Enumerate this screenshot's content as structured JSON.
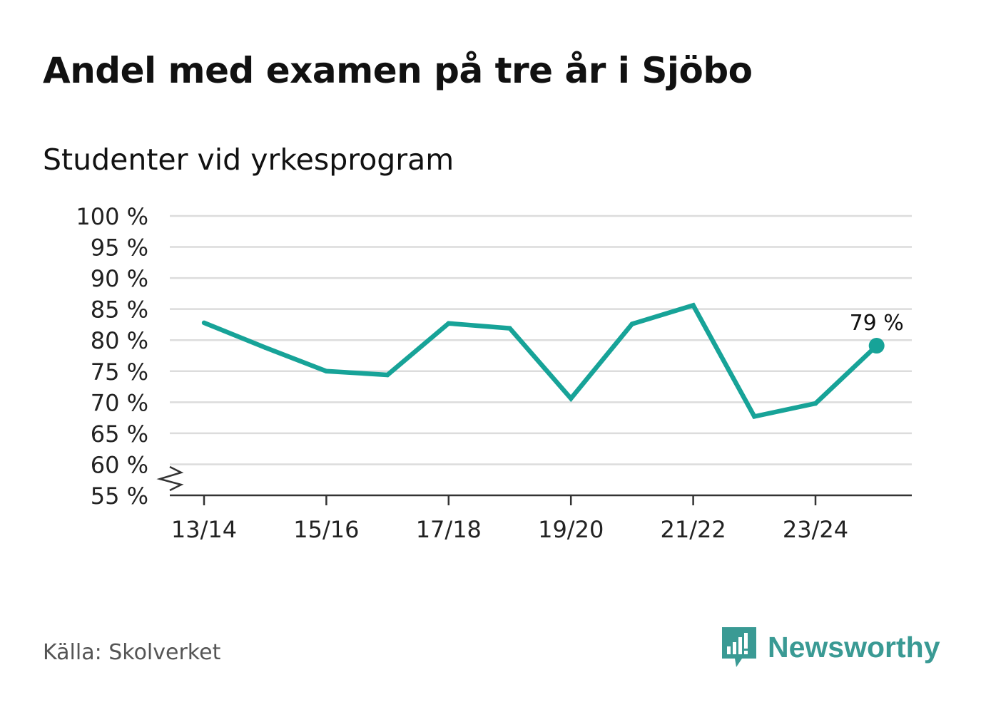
{
  "title": "Andel med examen på tre år i Sjöbo",
  "subtitle": "Studenter vid yrkesprogram",
  "source": "Källa: Skolverket",
  "brand": "Newsworthy",
  "colors": {
    "line": "#17a398",
    "grid": "#dcdcdc",
    "axis": "#333333",
    "brand": "#3a9a94"
  },
  "chart_data": {
    "type": "line",
    "title": "Andel med examen på tre år i Sjöbo",
    "subtitle": "Studenter vid yrkesprogram",
    "xlabel": "",
    "ylabel": "",
    "ylim": [
      55,
      100
    ],
    "y_break": true,
    "yticks": [
      55,
      60,
      65,
      70,
      75,
      80,
      85,
      90,
      95,
      100
    ],
    "ytick_labels": [
      "55 %",
      "60 %",
      "65 %",
      "70 %",
      "75 %",
      "80 %",
      "85 %",
      "90 %",
      "95 %",
      "100 %"
    ],
    "x": [
      "13/14",
      "14/15",
      "15/16",
      "16/17",
      "17/18",
      "18/19",
      "19/20",
      "20/21",
      "21/22",
      "22/23",
      "23/24",
      "24/25"
    ],
    "xtick_labels": [
      "13/14",
      "15/16",
      "17/18",
      "19/20",
      "21/22",
      "23/24"
    ],
    "series": [
      {
        "name": "Studenter vid yrkesprogram",
        "values": [
          82.8,
          78.8,
          75.0,
          74.4,
          82.7,
          81.9,
          70.6,
          82.6,
          85.6,
          67.7,
          69.8,
          79.1
        ]
      }
    ],
    "annotation": {
      "label": "79 %",
      "index": 11
    },
    "grid": true
  }
}
